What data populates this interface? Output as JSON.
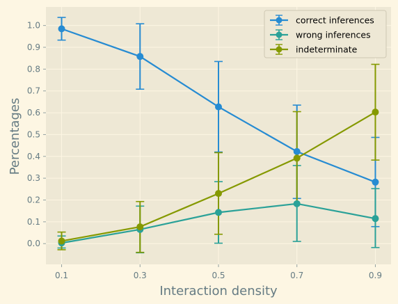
{
  "chart_data": {
    "type": "line",
    "xlabel": "Interaction density",
    "ylabel": "Percentages",
    "x": [
      0.1,
      0.3,
      0.5,
      0.7,
      0.9
    ],
    "x_tick_labels": [
      "0.1",
      "0.3",
      "0.5",
      "0.7",
      "0.9"
    ],
    "y_ticks": [
      0.0,
      0.1,
      0.2,
      0.3,
      0.4,
      0.5,
      0.6,
      0.7,
      0.8,
      0.9,
      1.0
    ],
    "y_tick_labels": [
      "0.0",
      "0.1",
      "0.2",
      "0.3",
      "0.4",
      "0.5",
      "0.6",
      "0.7",
      "0.8",
      "0.9",
      "1.0"
    ],
    "xlim": [
      0.06,
      0.94
    ],
    "ylim": [
      -0.095,
      1.085
    ],
    "grid": true,
    "legend_position": "top-right",
    "background_color": "#eee8d5",
    "figure_color": "#fdf6e3",
    "series": [
      {
        "name": "correct inferences",
        "color": "#268bd2",
        "values": [
          0.985,
          0.858,
          0.627,
          0.422,
          0.282
        ],
        "error_low": [
          0.933,
          0.708,
          0.42,
          0.207,
          0.078
        ],
        "error_high": [
          1.037,
          1.008,
          0.835,
          0.635,
          0.487
        ]
      },
      {
        "name": "wrong inferences",
        "color": "#2aa198",
        "values": [
          0.003,
          0.065,
          0.143,
          0.183,
          0.115
        ],
        "error_low": [
          -0.02,
          -0.042,
          0.002,
          0.01,
          -0.018
        ],
        "error_high": [
          0.035,
          0.172,
          0.284,
          0.358,
          0.252
        ]
      },
      {
        "name": "indeterminate",
        "color": "#859900",
        "values": [
          0.012,
          0.077,
          0.23,
          0.392,
          0.603
        ],
        "error_low": [
          -0.028,
          -0.04,
          0.043,
          0.18,
          0.383
        ],
        "error_high": [
          0.053,
          0.193,
          0.417,
          0.605,
          0.822
        ]
      }
    ]
  }
}
